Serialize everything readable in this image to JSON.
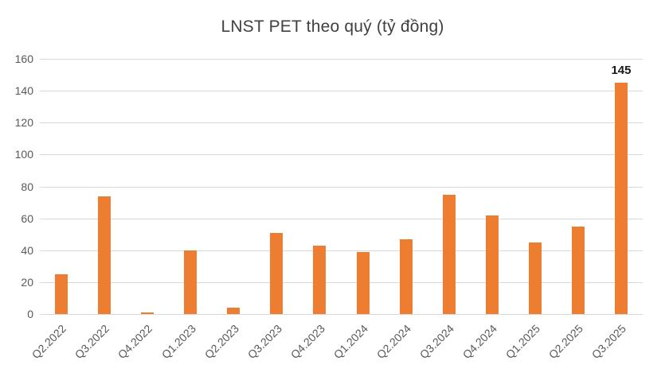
{
  "chart_data": {
    "type": "bar",
    "title": "LNST PET theo quý (tỷ đồng)",
    "categories": [
      "Q2.2022",
      "Q3.2022",
      "Q4.2022",
      "Q1.2023",
      "Q2.2023",
      "Q3.2023",
      "Q4.2023",
      "Q1.2024",
      "Q2.2024",
      "Q3.2024",
      "Q4.2024",
      "Q1.2025",
      "Q2.2025",
      "Q3.2025"
    ],
    "values": [
      25,
      74,
      1,
      40,
      4,
      51,
      43,
      39,
      47,
      75,
      62,
      45,
      55,
      145
    ],
    "data_labels": [
      null,
      null,
      null,
      null,
      null,
      null,
      null,
      null,
      null,
      null,
      null,
      null,
      null,
      "145"
    ],
    "xlabel": "",
    "ylabel": "",
    "ylim": [
      0,
      160
    ],
    "yticks": [
      0,
      20,
      40,
      60,
      80,
      100,
      120,
      140,
      160
    ],
    "grid": true,
    "legend_position": "none",
    "bar_color": "#ED7D31",
    "gridline_color": "#D9D9D9",
    "axis_text_color": "#595959",
    "title_color": "#404040",
    "data_label_color": "#1A1A1A"
  }
}
